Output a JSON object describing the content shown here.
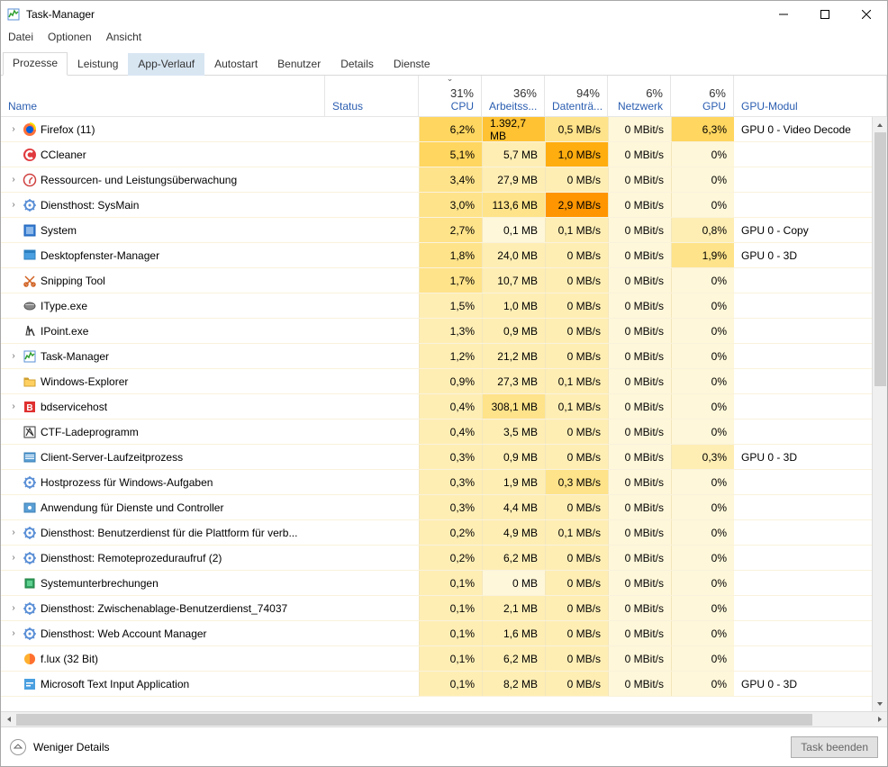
{
  "window": {
    "title": "Task-Manager"
  },
  "menu": [
    "Datei",
    "Optionen",
    "Ansicht"
  ],
  "tabs": [
    {
      "label": "Prozesse",
      "active": true
    },
    {
      "label": "Leistung"
    },
    {
      "label": "App-Verlauf",
      "highlight": true
    },
    {
      "label": "Autostart"
    },
    {
      "label": "Benutzer"
    },
    {
      "label": "Details"
    },
    {
      "label": "Dienste"
    }
  ],
  "columns": {
    "name": "Name",
    "status": "Status",
    "cpu": {
      "pct": "31%",
      "label": "CPU"
    },
    "mem": {
      "pct": "36%",
      "label": "Arbeitss..."
    },
    "disk": {
      "pct": "94%",
      "label": "Datenträ..."
    },
    "net": {
      "pct": "6%",
      "label": "Netzwerk"
    },
    "gpu": {
      "pct": "6%",
      "label": "GPU"
    },
    "gpumod": "GPU-Modul",
    "sort": "cpu",
    "sort_dir": "desc"
  },
  "heat": {
    "levels": {
      "0": "#fff7d9",
      "1": "#ffeeb4",
      "2": "#ffe38a",
      "3": "#ffd65f",
      "4": "#ffc233",
      "5": "#ffad0f",
      "6": "#ff9500"
    }
  },
  "footer": {
    "less": "Weniger Details",
    "end": "Task beenden"
  },
  "processes": [
    {
      "exp": true,
      "icon": "firefox",
      "name": "Firefox (11)",
      "cpu": "6,2%",
      "cpu_h": 3,
      "mem": "1.392,7 MB",
      "mem_h": 4,
      "disk": "0,5 MB/s",
      "disk_h": 2,
      "net": "0 MBit/s",
      "net_h": 0,
      "gpu": "6,3%",
      "gpu_h": 3,
      "gpumod": "GPU 0 - Video Decode"
    },
    {
      "exp": false,
      "icon": "ccleaner",
      "name": "CCleaner",
      "cpu": "5,1%",
      "cpu_h": 3,
      "mem": "5,7 MB",
      "mem_h": 1,
      "disk": "1,0 MB/s",
      "disk_h": 5,
      "net": "0 MBit/s",
      "net_h": 0,
      "gpu": "0%",
      "gpu_h": 0,
      "gpumod": ""
    },
    {
      "exp": true,
      "icon": "resmon",
      "name": "Ressourcen- und Leistungsüberwachung",
      "cpu": "3,4%",
      "cpu_h": 2,
      "mem": "27,9 MB",
      "mem_h": 1,
      "disk": "0 MB/s",
      "disk_h": 1,
      "net": "0 MBit/s",
      "net_h": 0,
      "gpu": "0%",
      "gpu_h": 0,
      "gpumod": ""
    },
    {
      "exp": true,
      "icon": "svc",
      "name": "Diensthost: SysMain",
      "cpu": "3,0%",
      "cpu_h": 2,
      "mem": "113,6 MB",
      "mem_h": 2,
      "disk": "2,9 MB/s",
      "disk_h": 6,
      "net": "0 MBit/s",
      "net_h": 0,
      "gpu": "0%",
      "gpu_h": 0,
      "gpumod": ""
    },
    {
      "exp": false,
      "icon": "system",
      "name": "System",
      "cpu": "2,7%",
      "cpu_h": 2,
      "mem": "0,1 MB",
      "mem_h": 0,
      "disk": "0,1 MB/s",
      "disk_h": 1,
      "net": "0 MBit/s",
      "net_h": 0,
      "gpu": "0,8%",
      "gpu_h": 1,
      "gpumod": "GPU 0 - Copy"
    },
    {
      "exp": false,
      "icon": "dwm",
      "name": "Desktopfenster-Manager",
      "cpu": "1,8%",
      "cpu_h": 2,
      "mem": "24,0 MB",
      "mem_h": 1,
      "disk": "0 MB/s",
      "disk_h": 1,
      "net": "0 MBit/s",
      "net_h": 0,
      "gpu": "1,9%",
      "gpu_h": 2,
      "gpumod": "GPU 0 - 3D"
    },
    {
      "exp": false,
      "icon": "snip",
      "name": "Snipping Tool",
      "cpu": "1,7%",
      "cpu_h": 2,
      "mem": "10,7 MB",
      "mem_h": 1,
      "disk": "0 MB/s",
      "disk_h": 1,
      "net": "0 MBit/s",
      "net_h": 0,
      "gpu": "0%",
      "gpu_h": 0,
      "gpumod": ""
    },
    {
      "exp": false,
      "icon": "itype",
      "name": "IType.exe",
      "cpu": "1,5%",
      "cpu_h": 1,
      "mem": "1,0 MB",
      "mem_h": 1,
      "disk": "0 MB/s",
      "disk_h": 1,
      "net": "0 MBit/s",
      "net_h": 0,
      "gpu": "0%",
      "gpu_h": 0,
      "gpumod": ""
    },
    {
      "exp": false,
      "icon": "ipoint",
      "name": "IPoint.exe",
      "cpu": "1,3%",
      "cpu_h": 1,
      "mem": "0,9 MB",
      "mem_h": 1,
      "disk": "0 MB/s",
      "disk_h": 1,
      "net": "0 MBit/s",
      "net_h": 0,
      "gpu": "0%",
      "gpu_h": 0,
      "gpumod": ""
    },
    {
      "exp": true,
      "icon": "taskmgr",
      "name": "Task-Manager",
      "cpu": "1,2%",
      "cpu_h": 1,
      "mem": "21,2 MB",
      "mem_h": 1,
      "disk": "0 MB/s",
      "disk_h": 1,
      "net": "0 MBit/s",
      "net_h": 0,
      "gpu": "0%",
      "gpu_h": 0,
      "gpumod": ""
    },
    {
      "exp": false,
      "icon": "explorer",
      "name": "Windows-Explorer",
      "cpu": "0,9%",
      "cpu_h": 1,
      "mem": "27,3 MB",
      "mem_h": 1,
      "disk": "0,1 MB/s",
      "disk_h": 1,
      "net": "0 MBit/s",
      "net_h": 0,
      "gpu": "0%",
      "gpu_h": 0,
      "gpumod": ""
    },
    {
      "exp": true,
      "icon": "bd",
      "name": "bdservicehost",
      "cpu": "0,4%",
      "cpu_h": 1,
      "mem": "308,1 MB",
      "mem_h": 2,
      "disk": "0,1 MB/s",
      "disk_h": 1,
      "net": "0 MBit/s",
      "net_h": 0,
      "gpu": "0%",
      "gpu_h": 0,
      "gpumod": ""
    },
    {
      "exp": false,
      "icon": "ctf",
      "name": "CTF-Ladeprogramm",
      "cpu": "0,4%",
      "cpu_h": 1,
      "mem": "3,5 MB",
      "mem_h": 1,
      "disk": "0 MB/s",
      "disk_h": 1,
      "net": "0 MBit/s",
      "net_h": 0,
      "gpu": "0%",
      "gpu_h": 0,
      "gpumod": ""
    },
    {
      "exp": false,
      "icon": "csrss",
      "name": "Client-Server-Laufzeitprozess",
      "cpu": "0,3%",
      "cpu_h": 1,
      "mem": "0,9 MB",
      "mem_h": 1,
      "disk": "0 MB/s",
      "disk_h": 1,
      "net": "0 MBit/s",
      "net_h": 0,
      "gpu": "0,3%",
      "gpu_h": 1,
      "gpumod": "GPU 0 - 3D"
    },
    {
      "exp": false,
      "icon": "svc",
      "name": "Hostprozess für Windows-Aufgaben",
      "cpu": "0,3%",
      "cpu_h": 1,
      "mem": "1,9 MB",
      "mem_h": 1,
      "disk": "0,3 MB/s",
      "disk_h": 2,
      "net": "0 MBit/s",
      "net_h": 0,
      "gpu": "0%",
      "gpu_h": 0,
      "gpumod": ""
    },
    {
      "exp": false,
      "icon": "svcctl",
      "name": "Anwendung für Dienste und Controller",
      "cpu": "0,3%",
      "cpu_h": 1,
      "mem": "4,4 MB",
      "mem_h": 1,
      "disk": "0 MB/s",
      "disk_h": 1,
      "net": "0 MBit/s",
      "net_h": 0,
      "gpu": "0%",
      "gpu_h": 0,
      "gpumod": ""
    },
    {
      "exp": true,
      "icon": "svc",
      "name": "Diensthost: Benutzerdienst für die Plattform für verb...",
      "cpu": "0,2%",
      "cpu_h": 1,
      "mem": "4,9 MB",
      "mem_h": 1,
      "disk": "0,1 MB/s",
      "disk_h": 1,
      "net": "0 MBit/s",
      "net_h": 0,
      "gpu": "0%",
      "gpu_h": 0,
      "gpumod": ""
    },
    {
      "exp": true,
      "icon": "svc",
      "name": "Diensthost: Remoteprozeduraufruf (2)",
      "cpu": "0,2%",
      "cpu_h": 1,
      "mem": "6,2 MB",
      "mem_h": 1,
      "disk": "0 MB/s",
      "disk_h": 1,
      "net": "0 MBit/s",
      "net_h": 0,
      "gpu": "0%",
      "gpu_h": 0,
      "gpumod": ""
    },
    {
      "exp": false,
      "icon": "sysint",
      "name": "Systemunterbrechungen",
      "cpu": "0,1%",
      "cpu_h": 1,
      "mem": "0 MB",
      "mem_h": 0,
      "disk": "0 MB/s",
      "disk_h": 1,
      "net": "0 MBit/s",
      "net_h": 0,
      "gpu": "0%",
      "gpu_h": 0,
      "gpumod": ""
    },
    {
      "exp": true,
      "icon": "svc",
      "name": "Diensthost: Zwischenablage-Benutzerdienst_74037",
      "cpu": "0,1%",
      "cpu_h": 1,
      "mem": "2,1 MB",
      "mem_h": 1,
      "disk": "0 MB/s",
      "disk_h": 1,
      "net": "0 MBit/s",
      "net_h": 0,
      "gpu": "0%",
      "gpu_h": 0,
      "gpumod": ""
    },
    {
      "exp": true,
      "icon": "svc",
      "name": "Diensthost: Web Account Manager",
      "cpu": "0,1%",
      "cpu_h": 1,
      "mem": "1,6 MB",
      "mem_h": 1,
      "disk": "0 MB/s",
      "disk_h": 1,
      "net": "0 MBit/s",
      "net_h": 0,
      "gpu": "0%",
      "gpu_h": 0,
      "gpumod": ""
    },
    {
      "exp": false,
      "icon": "flux",
      "name": "f.lux (32 Bit)",
      "cpu": "0,1%",
      "cpu_h": 1,
      "mem": "6,2 MB",
      "mem_h": 1,
      "disk": "0 MB/s",
      "disk_h": 1,
      "net": "0 MBit/s",
      "net_h": 0,
      "gpu": "0%",
      "gpu_h": 0,
      "gpumod": ""
    },
    {
      "exp": false,
      "icon": "mstext",
      "name": "Microsoft Text Input Application",
      "cpu": "0,1%",
      "cpu_h": 1,
      "mem": "8,2 MB",
      "mem_h": 1,
      "disk": "0 MB/s",
      "disk_h": 1,
      "net": "0 MBit/s",
      "net_h": 0,
      "gpu": "0%",
      "gpu_h": 0,
      "gpumod": "GPU 0 - 3D"
    }
  ],
  "icons_svg": {
    "firefox": "<svg viewBox='0 0 16 16'><circle cx='8' cy='8' r='7' fill='#ff7139'/><circle cx='8' cy='8' r='4' fill='#0060df'/><path d='M8 1c3 0 6 2 6 7' stroke='#ffde00' stroke-width='2' fill='none'/></svg>",
    "ccleaner": "<svg viewBox='0 0 16 16'><circle cx='8' cy='8' r='7' fill='#e03a3e'/><path d='M11 5a4 4 0 1 0 0 6' stroke='#fff' stroke-width='2.5' fill='none'/></svg>",
    "resmon": "<svg viewBox='0 0 16 16'><circle cx='8' cy='8' r='6.5' fill='none' stroke='#d04040' stroke-width='1.5'/><path d='M8 8l3-3M8 8l0 4' stroke='#d04040' stroke-width='1.5'/></svg>",
    "svc": "<svg viewBox='0 0 16 16'><circle cx='8' cy='8' r='5' fill='none' stroke='#5a8fd6' stroke-width='2'/><circle cx='8' cy='8' r='1.5' fill='#5a8fd6'/><path d='M8 1v2M8 13v2M1 8h2M13 8h2M3 3l1.5 1.5M11.5 11.5L13 13M3 13l1.5-1.5M11.5 4.5L13 3' stroke='#5a8fd6' stroke-width='1.5'/></svg>",
    "system": "<svg viewBox='0 0 16 16'><rect x='2' y='2' width='12' height='12' fill='#3a7fd5' stroke='#1a5fb5'/><rect x='4' y='4' width='8' height='8' fill='#8db8e8'/></svg>",
    "dwm": "<svg viewBox='0 0 16 16'><rect x='2' y='2' width='12' height='10' fill='#4a9fe0' stroke='#2a7fc0'/><rect x='2' y='2' width='12' height='3' fill='#2a7fc0'/></svg>",
    "snip": "<svg viewBox='0 0 16 16'><path d='M3 3l10 10M13 3L3 13' stroke='#d06020' stroke-width='1.5'/><circle cx='4' cy='12' r='2' fill='none' stroke='#d06020' stroke-width='1.5'/><circle cx='12' cy='12' r='2' fill='none' stroke='#d06020' stroke-width='1.5'/></svg>",
    "itype": "<svg viewBox='0 0 16 16'><ellipse cx='8' cy='8' rx='6' ry='4' fill='#888' stroke='#555'/><rect x='3' y='6' width='10' height='1' fill='#ccc'/></svg>",
    "ipoint": "<svg viewBox='0 0 16 16'><path d='M6 2l2 6 2-2 3 7' stroke='#333' stroke-width='1.5' fill='none'/><path d='M6 2l-2 10h4z' fill='#ddd' stroke='#333'/></svg>",
    "taskmgr": "<svg viewBox='0 0 16 16'><rect x='2' y='2' width='12' height='12' fill='#fff' stroke='#5a8fd6'/><path d='M3 11l2-4 2 2 2-5 2 3 2-2' stroke='#30a030' stroke-width='1.5' fill='none'/></svg>",
    "explorer": "<svg viewBox='0 0 16 16'><path d='M2 4h4l1 2h7v7H2z' fill='#ffd060' stroke='#d0a030'/><rect x='2' y='4' width='5' height='2' fill='#d0a030'/></svg>",
    "bd": "<svg viewBox='0 0 16 16'><rect x='2' y='2' width='12' height='12' fill='#e03030'/><text x='8' y='12' font-size='10' font-weight='bold' fill='#fff' text-anchor='middle'>B</text></svg>",
    "ctf": "<svg viewBox='0 0 16 16'><rect x='2' y='2' width='12' height='12' fill='#fff' stroke='#333'/><path d='M4 4l8 8M4 12l4-8 4 8' stroke='#333' stroke-width='1.2' fill='none'/></svg>",
    "csrss": "<svg viewBox='0 0 16 16'><rect x='2' y='3' width='12' height='10' fill='#5a9fd5' stroke='#3a7fb5'/><rect x='3' y='5' width='10' height='1' fill='#fff'/><rect x='3' y='7' width='10' height='1' fill='#fff'/><rect x='3' y='9' width='10' height='1' fill='#fff'/></svg>",
    "svcctl": "<svg viewBox='0 0 16 16'><rect x='2' y='3' width='12' height='10' fill='#5a9fd5' stroke='#3a7fb5'/><circle cx='8' cy='8' r='2' fill='#fff'/></svg>",
    "sysint": "<svg viewBox='0 0 16 16'><rect x='3' y='3' width='10' height='10' fill='#30a060' stroke='#208040'/><rect x='5' y='5' width='6' height='6' fill='#60d090'/></svg>",
    "flux": "<svg viewBox='0 0 16 16'><circle cx='8' cy='8' r='6' fill='#ffb030'/><path d='M8 2a6 6 0 0 1 0 12' fill='#ff7030'/></svg>",
    "mstext": "<svg viewBox='0 0 16 16'><rect x='2' y='2' width='12' height='12' fill='#4a9fe0'/><rect x='4' y='6' width='8' height='1.5' fill='#fff'/><rect x='4' y='9' width='5' height='1.5' fill='#fff'/></svg>"
  }
}
